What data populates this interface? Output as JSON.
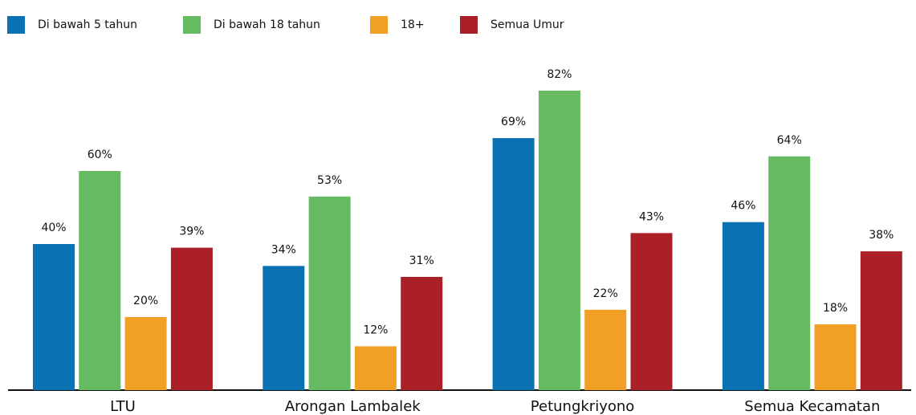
{
  "chart_data": {
    "type": "bar",
    "categories": [
      "LTU",
      "Arongan Lambalek",
      "Petungkriyono",
      "Semua Kecamatan"
    ],
    "series": [
      {
        "name": "Di bawah 5 tahun",
        "color": "#0a72b2",
        "values": [
          40,
          34,
          69,
          46
        ],
        "value_labels": [
          "40%",
          "34%",
          "69%",
          "46%"
        ]
      },
      {
        "name": "Di bawah 18 tahun",
        "color": "#66bb62",
        "values": [
          60,
          53,
          82,
          64
        ],
        "value_labels": [
          "60%",
          "53%",
          "82%",
          "64%"
        ]
      },
      {
        "name": "18+",
        "color": "#f29f25",
        "values": [
          20,
          12,
          22,
          18
        ],
        "value_labels": [
          "20%",
          "12%",
          "22%",
          "18%"
        ]
      },
      {
        "name": "Semua Umur",
        "color": "#ab1f27",
        "values": [
          39,
          31,
          43,
          38
        ],
        "value_labels": [
          "39%",
          "31%",
          "43%",
          "38%"
        ]
      }
    ],
    "legend": "top-left"
  }
}
